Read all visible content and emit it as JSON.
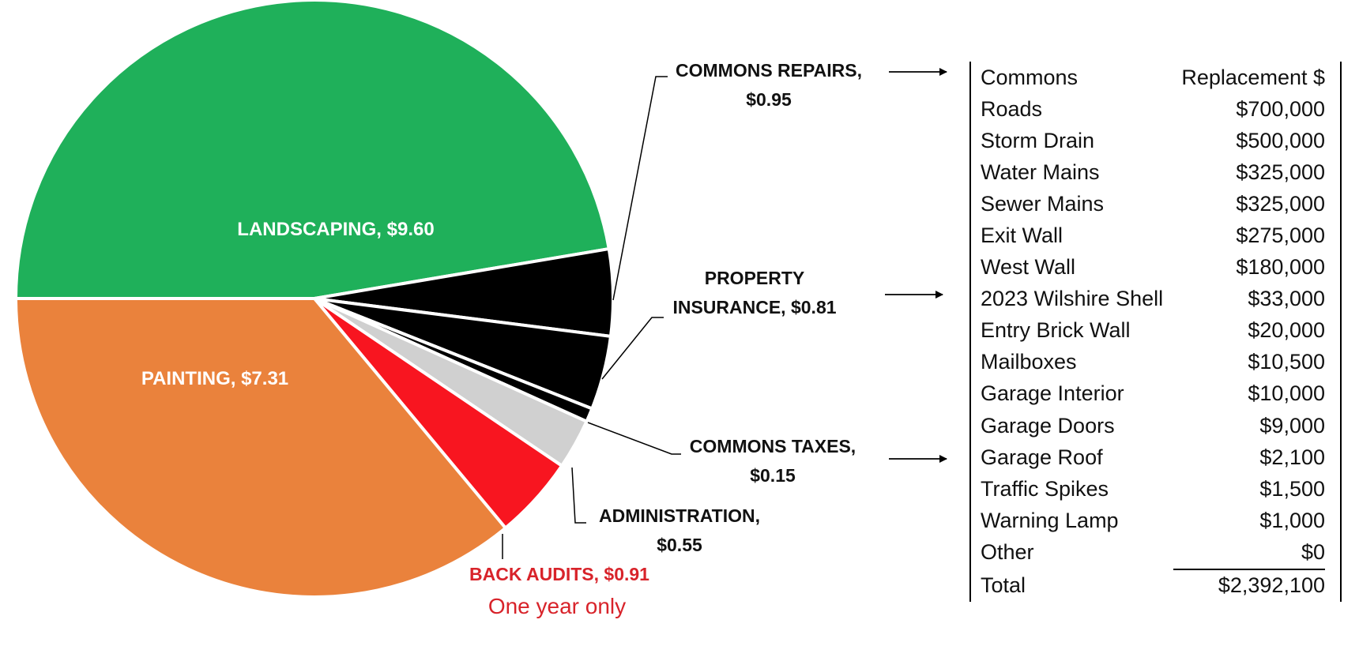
{
  "chart_data": {
    "type": "pie",
    "title": "",
    "unit": "$",
    "slices": [
      {
        "label": "LANDSCAPING",
        "value": 9.6,
        "display": "LANDSCAPING, $9.60",
        "color": "#1fb05a",
        "label_inside": true
      },
      {
        "label": "COMMONS REPAIRS",
        "value": 0.95,
        "display_line1": "COMMONS REPAIRS,",
        "display_line2": "$0.95",
        "color": "#000000"
      },
      {
        "label": "PROPERTY INSURANCE",
        "value": 0.81,
        "display_line1": "PROPERTY",
        "display_line2": "INSURANCE, $0.81",
        "color": "#000000"
      },
      {
        "label": "COMMONS TAXES",
        "value": 0.15,
        "display_line1": "COMMONS TAXES,",
        "display_line2": "$0.15",
        "color": "#000000"
      },
      {
        "label": "ADMINISTRATION",
        "value": 0.55,
        "display_line1": "ADMINISTRATION,",
        "display_line2": "$0.55",
        "color": "#d0d0d0"
      },
      {
        "label": "BACK AUDITS",
        "value": 0.91,
        "display": "BACK AUDITS, $0.91",
        "note": "One year only",
        "color": "#f81520"
      },
      {
        "label": "PAINTING",
        "value": 7.31,
        "display": "PAINTING, $7.31",
        "color": "#ea823c",
        "label_inside": true
      }
    ]
  },
  "table": {
    "headers": [
      "Commons",
      "Replacement $"
    ],
    "rows": [
      [
        "Roads",
        "$700,000"
      ],
      [
        "Storm Drain",
        "$500,000"
      ],
      [
        "Water Mains",
        "$325,000"
      ],
      [
        "Sewer Mains",
        "$325,000"
      ],
      [
        "Exit Wall",
        "$275,000"
      ],
      [
        "West Wall",
        "$180,000"
      ],
      [
        "2023 Wilshire Shell",
        "$33,000"
      ],
      [
        "Entry Brick Wall",
        "$20,000"
      ],
      [
        "Mailboxes",
        "$10,500"
      ],
      [
        "Garage Interior",
        "$10,000"
      ],
      [
        "Garage Doors",
        "$9,000"
      ],
      [
        "Garage Roof",
        "$2,100"
      ],
      [
        "Traffic Spikes",
        "$1,500"
      ],
      [
        "Warning Lamp",
        "$1,000"
      ],
      [
        "Other",
        "$0"
      ]
    ],
    "total": [
      "Total",
      "$2,392,100"
    ]
  }
}
